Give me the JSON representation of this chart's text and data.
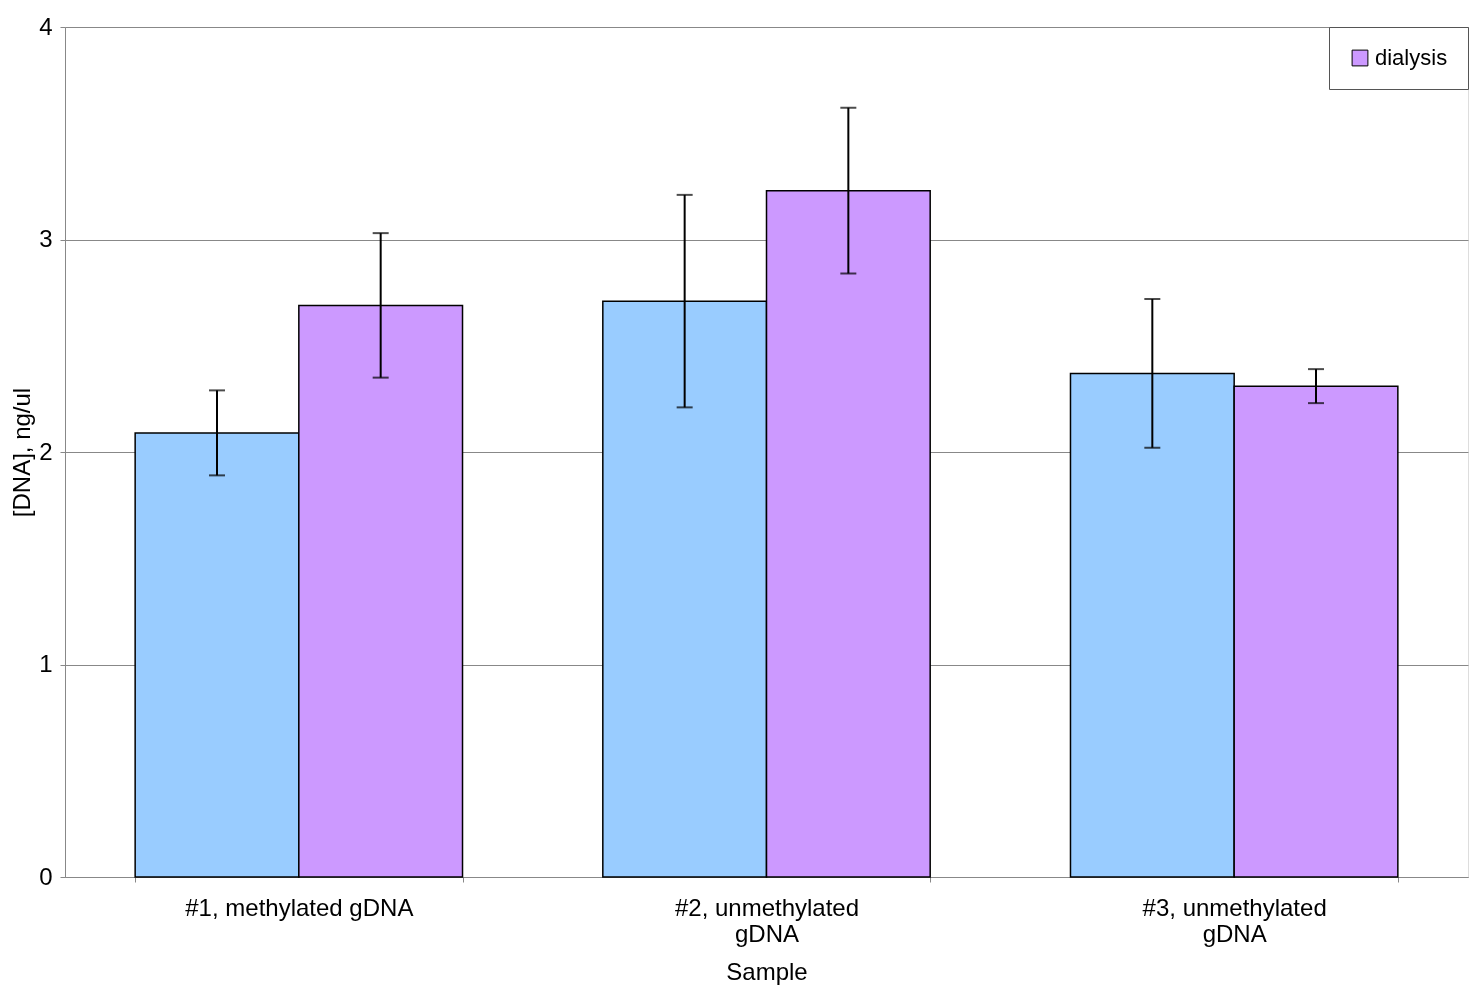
{
  "chart_data": {
    "type": "bar",
    "xlabel": "Sample",
    "ylabel": "[DNA], ng/ul",
    "categories": [
      "#1, methylated gDNA",
      "#2, unmethylated\ngDNA",
      "#3, unmethylated\ngDNA"
    ],
    "series": [
      {
        "color": "#99ccff",
        "values": [
          2.09,
          2.71,
          2.37
        ],
        "errors": [
          0.2,
          0.5,
          0.35
        ]
      },
      {
        "name": "dialysis",
        "color": "#cc99ff",
        "values": [
          2.69,
          3.23,
          2.31
        ],
        "errors": [
          0.34,
          0.39,
          0.08
        ]
      }
    ],
    "ylim": [
      0,
      4
    ],
    "yticks": [
      0,
      1,
      2,
      3,
      4
    ],
    "grid": "y",
    "legend": "top right"
  }
}
